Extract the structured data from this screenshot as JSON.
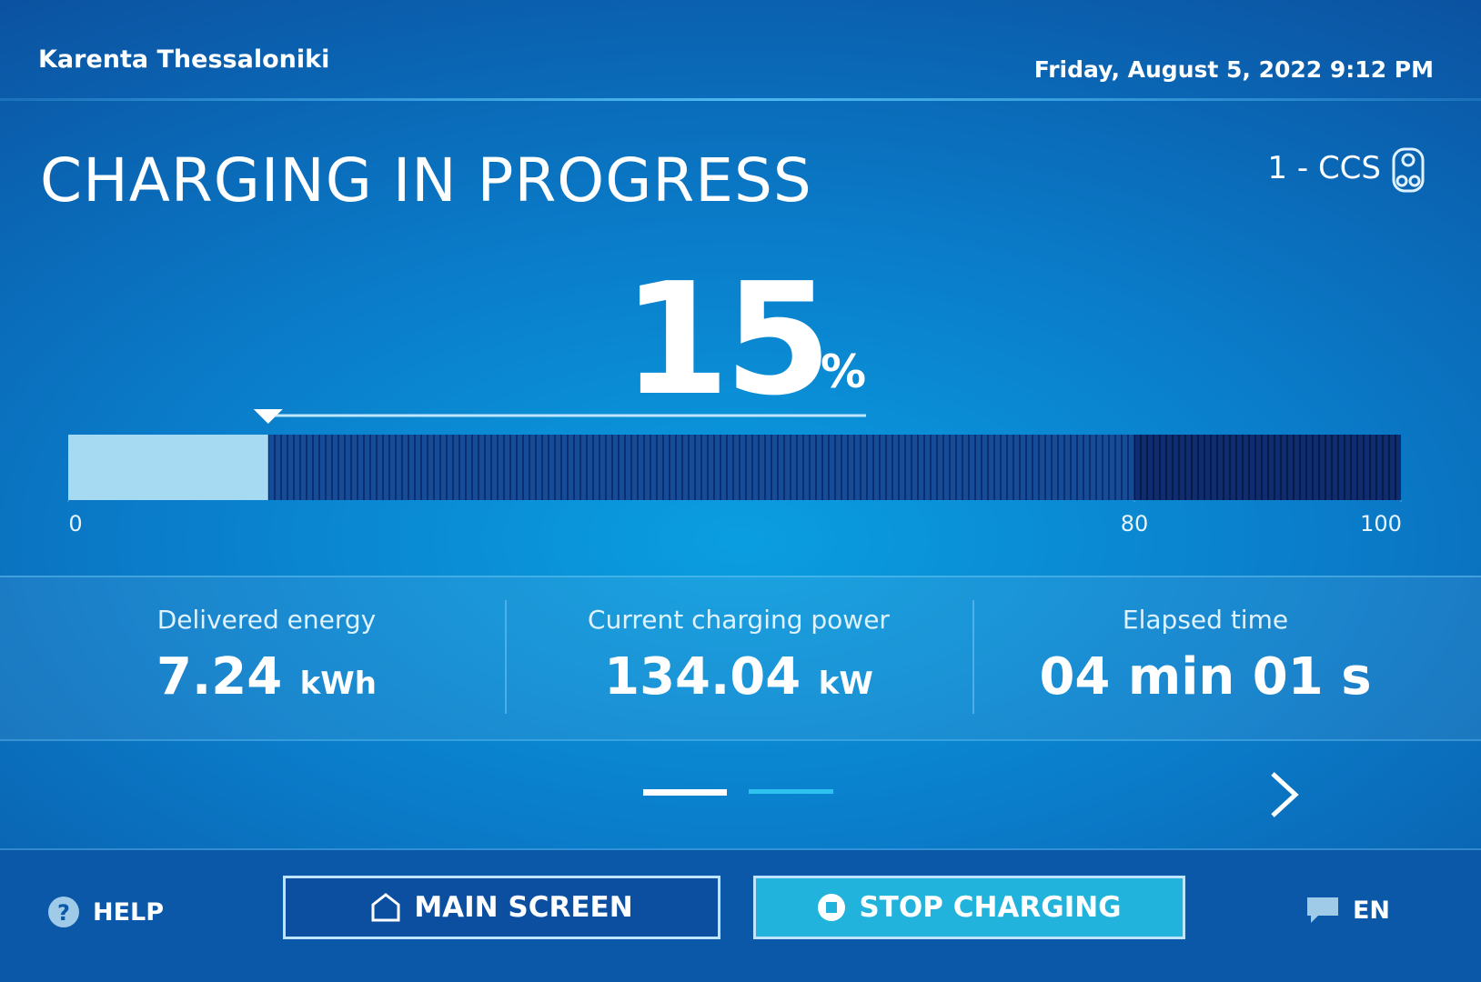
{
  "header": {
    "station": "Karenta Thessaloniki",
    "datetime": "Friday, August 5, 2022 9:12 PM"
  },
  "status": {
    "title": "CHARGING IN PROGRESS",
    "connector": "1 - CCS"
  },
  "progress": {
    "value": 15,
    "unit": "%",
    "range": [
      0,
      100
    ],
    "ticks": [
      0,
      80,
      100
    ]
  },
  "metrics": [
    {
      "label": "Delivered energy",
      "value": 7.24,
      "unit": "kWh"
    },
    {
      "label": "Current charging power",
      "value": 134.04,
      "unit": "kW"
    },
    {
      "label": "Elapsed time",
      "value": "04 min 01 s"
    }
  ],
  "buttons": {
    "help": "HELP",
    "main": "MAIN SCREEN",
    "stop": "STOP CHARGING",
    "language": "EN"
  }
}
